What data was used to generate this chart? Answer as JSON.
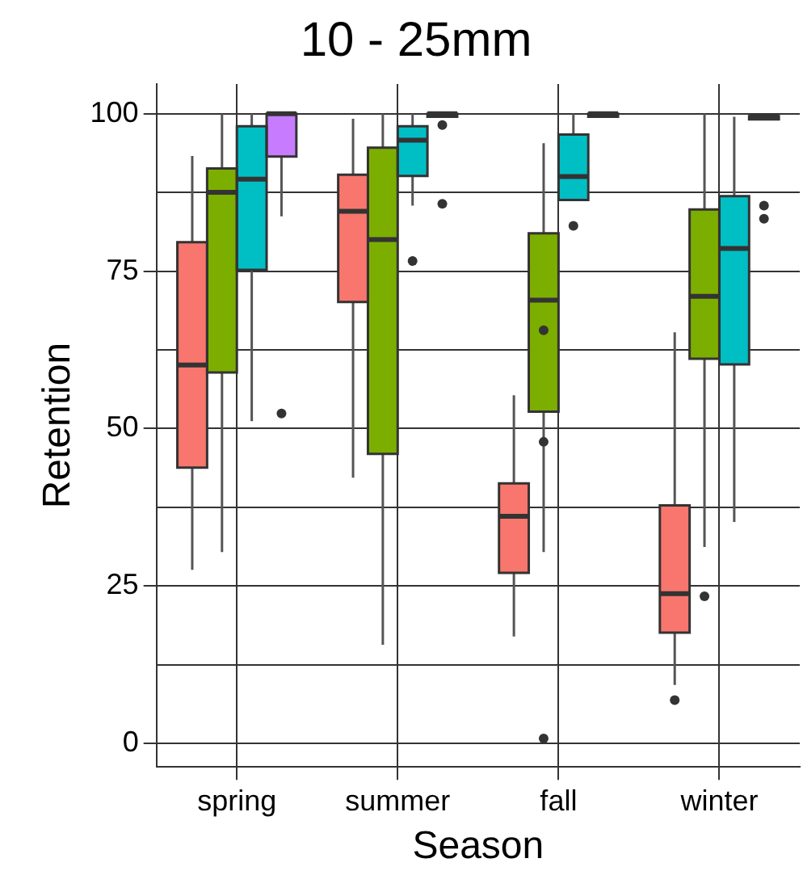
{
  "chart_data": {
    "type": "box",
    "title": "10 - 25mm",
    "xlabel": "Season",
    "ylabel": "Retention",
    "categories": [
      "spring",
      "summer",
      "fall",
      "winter"
    ],
    "ylim": [
      -3.7,
      104.7
    ],
    "yticks": [
      0,
      {
        "value": 12.5,
        "label": null
      },
      25,
      {
        "value": 37.5,
        "label": null
      },
      50,
      {
        "value": 62.5,
        "label": null
      },
      75,
      {
        "value": 87.5,
        "label": null
      },
      100
    ],
    "grid": true,
    "legend": false,
    "series": [
      {
        "color": "#f8766d",
        "boxes": [
          {
            "low": 27.6,
            "q1": 43.8,
            "median": 60.1,
            "q3": 79.6,
            "high": 93.3
          },
          {
            "low": 42.2,
            "q1": 70.1,
            "median": 84.5,
            "q3": 90.3,
            "high": 99.2
          },
          {
            "low": 17,
            "q1": 27.1,
            "median": 36.1,
            "q3": 41.3,
            "high": 55.3
          },
          {
            "low": 9.3,
            "q1": 17.6,
            "median": 23.8,
            "q3": 37.8,
            "high": 65.3,
            "outliers": [
              6.9
            ]
          }
        ]
      },
      {
        "color": "#7cae00",
        "boxes": [
          {
            "low": 30.4,
            "q1": 58.9,
            "median": 87.5,
            "q3": 91.3,
            "high": 100
          },
          {
            "low": 15.7,
            "q1": 46,
            "median": 80,
            "q3": 94.6,
            "high": 100
          },
          {
            "low": 30.4,
            "q1": 52.7,
            "median": 70.4,
            "q3": 81,
            "high": 95.3,
            "outliers": [
              65.6,
              47.9,
              0.8
            ]
          },
          {
            "low": 31.2,
            "q1": 61.1,
            "median": 71,
            "q3": 84.8,
            "high": 100,
            "outliers": [
              23.4
            ]
          }
        ]
      },
      {
        "color": "#00bfc4",
        "boxes": [
          {
            "low": 51.2,
            "q1": 75.2,
            "median": 89.6,
            "q3": 98,
            "high": 100
          },
          {
            "low": 85.4,
            "q1": 90.1,
            "median": 95.8,
            "q3": 98,
            "high": 100,
            "outliers": [
              76.6
            ]
          },
          {
            "low": 86.3,
            "q1": 86.3,
            "median": 90,
            "q3": 96.7,
            "high": 100,
            "outliers": [
              82.2
            ]
          },
          {
            "low": 35.2,
            "q1": 60.2,
            "median": 78.6,
            "q3": 86.9,
            "high": 99.5
          }
        ]
      },
      {
        "color": "#c77cff",
        "boxes": [
          {
            "low": 83.7,
            "q1": 93.2,
            "median": 100,
            "q3": 100,
            "high": 100,
            "outliers": [
              52.4
            ]
          },
          {
            "low": 99.5,
            "q1": 99.5,
            "median": 100,
            "q3": 100,
            "high": 100,
            "outliers": [
              98.2,
              85.7
            ]
          },
          {
            "low": 99.5,
            "q1": 99.5,
            "median": 100,
            "q3": 100,
            "high": 100
          },
          {
            "low": 99.1,
            "q1": 99.1,
            "median": 99.6,
            "q3": 99.6,
            "high": 99.6,
            "outliers": [
              85.4,
              83.3
            ]
          }
        ]
      }
    ]
  }
}
